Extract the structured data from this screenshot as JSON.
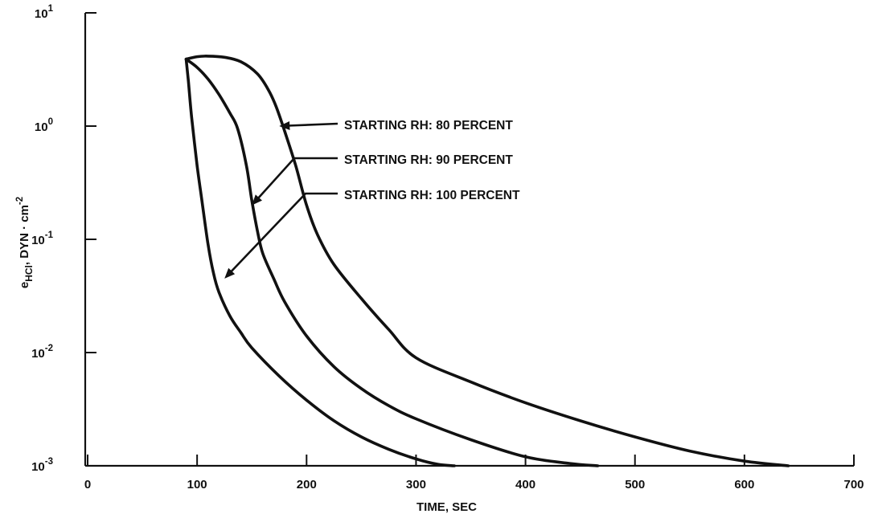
{
  "chart_data": {
    "type": "line",
    "title": "",
    "xlabel": "TIME, SEC",
    "ylabel": {
      "prefix": "e",
      "subscript": "HCl",
      "suffix": ", DYN · cm",
      "superscript": "-2"
    },
    "xlim": [
      0,
      700
    ],
    "ylim": [
      0.001,
      10
    ],
    "yscale": "log",
    "grid": false,
    "legend": "none",
    "x_ticks": [
      {
        "value": 0,
        "label": "0"
      },
      {
        "value": 100,
        "label": "100"
      },
      {
        "value": 200,
        "label": "200"
      },
      {
        "value": 300,
        "label": "300"
      },
      {
        "value": 400,
        "label": "400"
      },
      {
        "value": 500,
        "label": "500"
      },
      {
        "value": 600,
        "label": "600"
      },
      {
        "value": 700,
        "label": "700"
      }
    ],
    "y_ticks": [
      {
        "value": 10,
        "base": "10",
        "exp": "1"
      },
      {
        "value": 1,
        "base": "10",
        "exp": "0"
      },
      {
        "value": 0.1,
        "base": "10",
        "exp": "-1"
      },
      {
        "value": 0.01,
        "base": "10",
        "exp": "-2"
      },
      {
        "value": 0.001,
        "base": "10",
        "exp": "-3"
      }
    ],
    "series": [
      {
        "x": [
          90,
          100,
          110,
          125,
          140,
          155,
          165,
          172,
          180,
          190,
          200,
          210,
          225,
          250,
          275,
          300,
          350,
          400,
          450,
          500,
          550,
          600,
          640
        ],
        "y": [
          3.9,
          4.1,
          4.15,
          4.05,
          3.7,
          2.9,
          2.1,
          1.5,
          0.9,
          0.45,
          0.2,
          0.11,
          0.06,
          0.03,
          0.016,
          0.009,
          0.0055,
          0.0036,
          0.0025,
          0.0018,
          0.00135,
          0.0011,
          0.001
        ]
      },
      {
        "x": [
          90,
          100,
          110,
          120,
          130,
          137,
          145,
          150,
          155,
          160,
          170,
          180,
          200,
          225,
          250,
          275,
          300,
          350,
          400,
          440,
          466
        ],
        "y": [
          3.9,
          3.3,
          2.6,
          1.9,
          1.3,
          0.95,
          0.45,
          0.22,
          0.12,
          0.075,
          0.045,
          0.028,
          0.014,
          0.0075,
          0.0048,
          0.0034,
          0.0026,
          0.0017,
          0.0012,
          0.00105,
          0.001
        ]
      },
      {
        "x": [
          90,
          92,
          95,
          100,
          105,
          110,
          115,
          120,
          130,
          140,
          150,
          175,
          200,
          225,
          250,
          275,
          300,
          320,
          335
        ],
        "y": [
          3.9,
          2.5,
          1.2,
          0.45,
          0.2,
          0.09,
          0.05,
          0.034,
          0.021,
          0.015,
          0.011,
          0.0062,
          0.0038,
          0.0025,
          0.0018,
          0.0014,
          0.00115,
          0.00103,
          0.001
        ]
      }
    ],
    "annotations": [
      {
        "text": "STARTING RH:  80 PERCENT",
        "target_series": 0,
        "x": 175,
        "y": 1.0
      },
      {
        "text": "STARTING RH:  90 PERCENT",
        "target_series": 1,
        "x": 150,
        "y": 0.2
      },
      {
        "text": "STARTING RH:  100 PERCENT",
        "target_series": 2,
        "x": 125,
        "y": 0.045
      }
    ]
  }
}
